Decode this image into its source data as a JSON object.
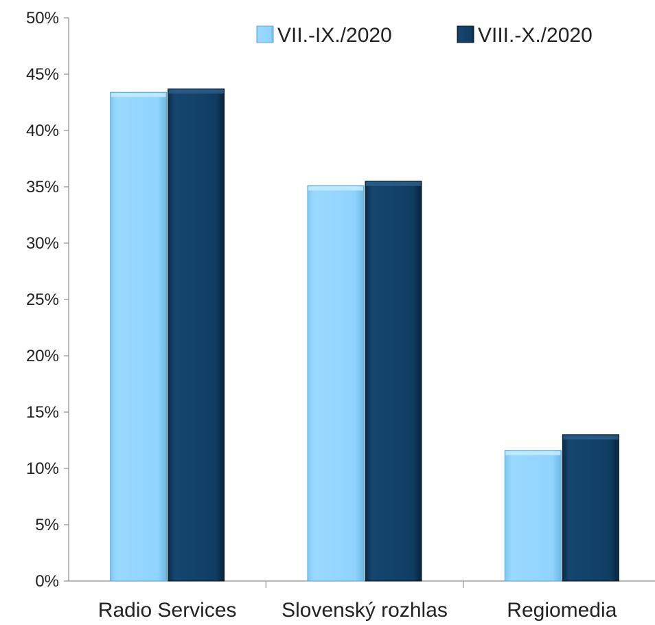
{
  "chart_data": {
    "type": "bar",
    "categories": [
      "Radio Services",
      "Slovenský rozhlas",
      "Regiomedia"
    ],
    "series": [
      {
        "name": "VII.-IX./2020",
        "values": [
          0.434,
          0.351,
          0.116
        ],
        "color": "#8fd3ff"
      },
      {
        "name": "VIII.-X./2020",
        "values": [
          0.437,
          0.355,
          0.13
        ],
        "color": "#0f3b5f"
      }
    ],
    "y_ticks": [
      0,
      0.05,
      0.1,
      0.15,
      0.2,
      0.25,
      0.3,
      0.35,
      0.4,
      0.45,
      0.5
    ],
    "y_tick_labels": [
      "0%",
      "5%",
      "10%",
      "15%",
      "20%",
      "25%",
      "30%",
      "35%",
      "40%",
      "45%",
      "50%"
    ],
    "ylim": [
      0,
      0.5
    ],
    "grid": false,
    "legend_position": "top-right"
  }
}
